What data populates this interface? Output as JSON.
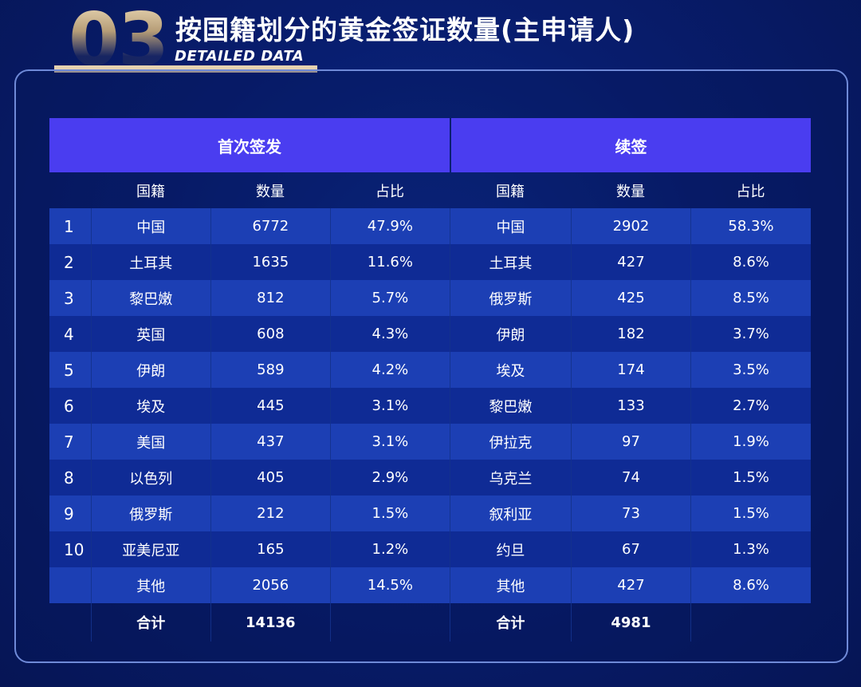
{
  "header": {
    "number": "03",
    "title": "按国籍划分的黄金签证数量(主申请人)",
    "subtitle": "DETAILED DATA"
  },
  "table": {
    "groups": [
      "首次签发",
      "续签"
    ],
    "columns": [
      "国籍",
      "数量",
      "占比",
      "国籍",
      "数量",
      "占比"
    ],
    "rows": [
      {
        "rank": "1",
        "c1": "中国",
        "n1": "6772",
        "p1": "47.9%",
        "c2": "中国",
        "n2": "2902",
        "p2": "58.3%"
      },
      {
        "rank": "2",
        "c1": "土耳其",
        "n1": "1635",
        "p1": "11.6%",
        "c2": "土耳其",
        "n2": "427",
        "p2": "8.6%"
      },
      {
        "rank": "3",
        "c1": "黎巴嫩",
        "n1": "812",
        "p1": "5.7%",
        "c2": "俄罗斯",
        "n2": "425",
        "p2": "8.5%"
      },
      {
        "rank": "4",
        "c1": "英国",
        "n1": "608",
        "p1": "4.3%",
        "c2": "伊朗",
        "n2": "182",
        "p2": "3.7%"
      },
      {
        "rank": "5",
        "c1": "伊朗",
        "n1": "589",
        "p1": "4.2%",
        "c2": "埃及",
        "n2": "174",
        "p2": "3.5%"
      },
      {
        "rank": "6",
        "c1": "埃及",
        "n1": "445",
        "p1": "3.1%",
        "c2": "黎巴嫩",
        "n2": "133",
        "p2": "2.7%"
      },
      {
        "rank": "7",
        "c1": "美国",
        "n1": "437",
        "p1": "3.1%",
        "c2": "伊拉克",
        "n2": "97",
        "p2": "1.9%"
      },
      {
        "rank": "8",
        "c1": "以色列",
        "n1": "405",
        "p1": "2.9%",
        "c2": "乌克兰",
        "n2": "74",
        "p2": "1.5%"
      },
      {
        "rank": "9",
        "c1": "俄罗斯",
        "n1": "212",
        "p1": "1.5%",
        "c2": "叙利亚",
        "n2": "73",
        "p2": "1.5%"
      },
      {
        "rank": "10",
        "c1": "亚美尼亚",
        "n1": "165",
        "p1": "1.2%",
        "c2": "约旦",
        "n2": "67",
        "p2": "1.3%"
      },
      {
        "rank": "",
        "c1": "其他",
        "n1": "2056",
        "p1": "14.5%",
        "c2": "其他",
        "n2": "427",
        "p2": "8.6%"
      }
    ],
    "total": {
      "label1": "合计",
      "value1": "14136",
      "label2": "合计",
      "value2": "4981"
    }
  }
}
